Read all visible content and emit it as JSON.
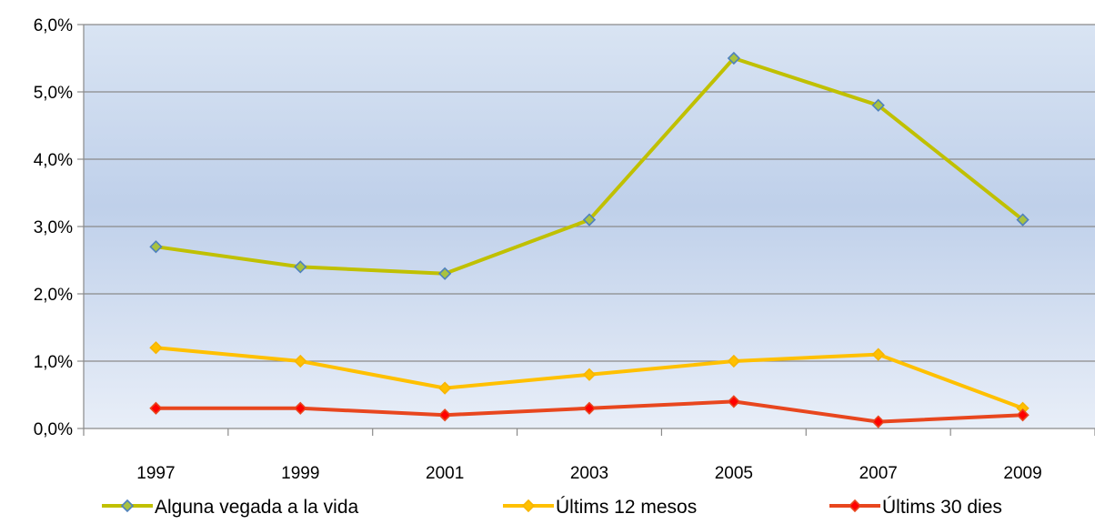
{
  "chart_data": {
    "type": "line",
    "categories": [
      "1997",
      "1999",
      "2001",
      "2003",
      "2005",
      "2007",
      "2009"
    ],
    "y_tick_labels": [
      "0,0%",
      "1,0%",
      "2,0%",
      "3,0%",
      "4,0%",
      "5,0%",
      "6,0%"
    ],
    "ylim": [
      0,
      6
    ],
    "y_unit": "%",
    "grid": true,
    "legend_position": "bottom",
    "series": [
      {
        "name": "Alguna vegada a la vida",
        "values": [
          2.7,
          2.4,
          2.3,
          3.1,
          5.5,
          4.8,
          3.1
        ],
        "color": "#c0c000",
        "marker_color": "#a9c23f",
        "marker_edge": "#4f81bd"
      },
      {
        "name": "Últims 12 mesos",
        "values": [
          1.2,
          1.0,
          0.6,
          0.8,
          1.0,
          1.1,
          0.3
        ],
        "color": "#ffc000",
        "marker_color": "#ffc000",
        "marker_edge": "#f7b500"
      },
      {
        "name": "Últims 30 dies",
        "values": [
          0.3,
          0.3,
          0.2,
          0.3,
          0.4,
          0.1,
          0.2
        ],
        "color": "#e8461e",
        "marker_color": "#ff0000",
        "marker_edge": "#e8461e"
      }
    ],
    "plot_bg_top": "#d9e4f3",
    "plot_bg_bottom": "#e8eef8"
  }
}
